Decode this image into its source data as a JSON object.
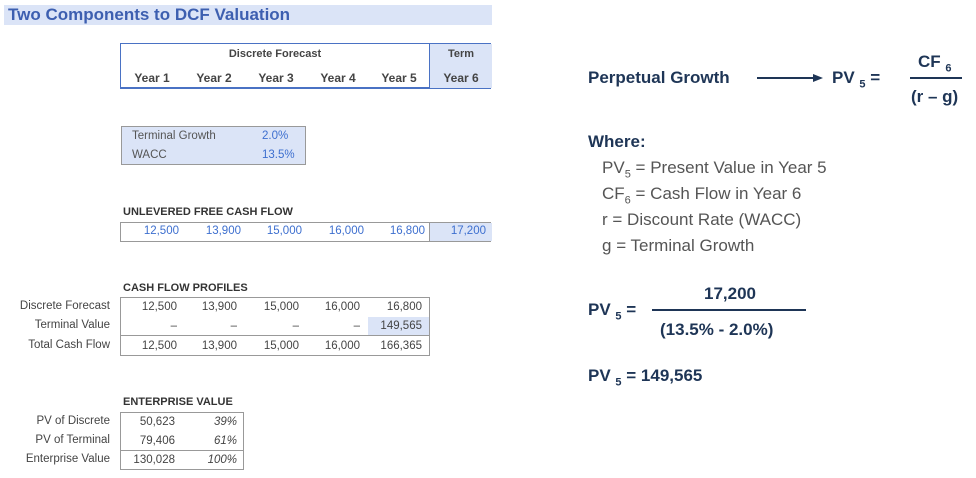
{
  "title": "Two Components to DCF Valuation",
  "header": {
    "discrete_label": "Discrete Forecast",
    "term_label": "Term",
    "years": [
      "Year 1",
      "Year 2",
      "Year 3",
      "Year 4",
      "Year 5",
      "Year 6"
    ]
  },
  "assumptions": {
    "growth_label": "Terminal Growth",
    "growth_value": "2.0%",
    "wacc_label": "WACC",
    "wacc_value": "13.5%"
  },
  "ufcf": {
    "title": "UNLEVERED FREE CASH FLOW",
    "values": [
      "12,500",
      "13,900",
      "15,000",
      "16,000",
      "16,800",
      "17,200"
    ]
  },
  "profiles": {
    "title": "CASH FLOW PROFILES",
    "rows": [
      {
        "label": "Discrete Forecast",
        "values": [
          "12,500",
          "13,900",
          "15,000",
          "16,000",
          "16,800"
        ]
      },
      {
        "label": "Terminal Value",
        "values": [
          "–",
          "–",
          "–",
          "–",
          "149,565"
        ]
      },
      {
        "label": "Total Cash Flow",
        "values": [
          "12,500",
          "13,900",
          "15,000",
          "16,000",
          "166,365"
        ]
      }
    ]
  },
  "ev": {
    "title": "ENTERPRISE VALUE",
    "rows": [
      {
        "label": "PV of Discrete",
        "value": "50,623",
        "pct": "39%"
      },
      {
        "label": "PV of Terminal",
        "value": "79,406",
        "pct": "61%"
      },
      {
        "label": "Enterprise Value",
        "value": "130,028",
        "pct": "100%"
      }
    ]
  },
  "formula": {
    "perpetual_label": "Perpetual Growth",
    "pv": "PV",
    "pv_sub": "5",
    "eq": "=",
    "cf": "CF",
    "cf_sub": "6",
    "denom": "(r – g)"
  },
  "where": {
    "title": "Where:",
    "lines": [
      {
        "a": "PV",
        "sub": "5",
        "b": "= Present Value in Year 5"
      },
      {
        "a": "CF",
        "sub": "6",
        "b": "= Cash Flow in Year 6"
      },
      {
        "a": "r",
        "sub": "",
        "b": "= Discount Rate (WACC)"
      },
      {
        "a": "g",
        "sub": "",
        "b": "= Terminal Growth"
      }
    ]
  },
  "calc": {
    "numerator": "17,200",
    "denominator": "(13.5% - 2.0%)",
    "result": "= 149,565"
  }
}
